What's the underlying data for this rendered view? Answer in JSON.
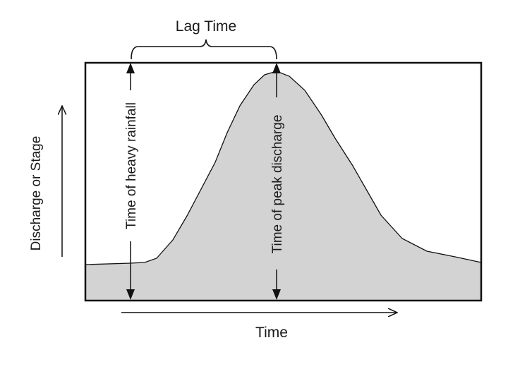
{
  "diagram": {
    "lag_label": "Lag Time",
    "y_axis_label": "Discharge or Stage",
    "x_axis_label": "Time",
    "rainfall_marker_label": "Time of heavy rainfall",
    "peak_marker_label": "Time of peak discharge",
    "colors": {
      "fill": "#d3d3d3",
      "stroke": "#111111",
      "background": "#ffffff"
    }
  }
}
